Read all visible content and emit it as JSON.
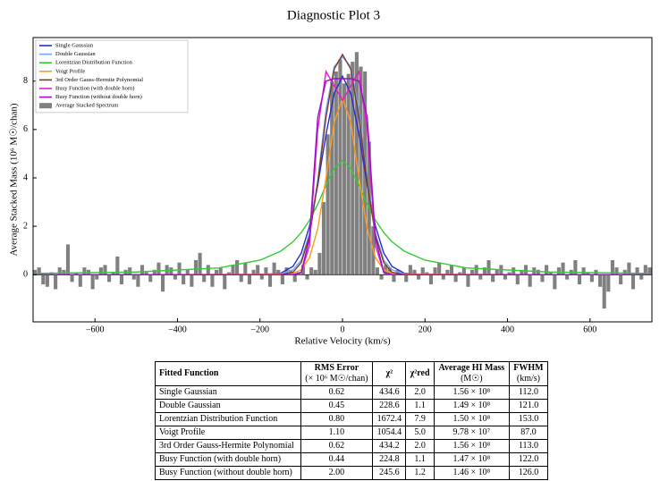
{
  "chart_data": {
    "type": "line",
    "title": "Diagnostic Plot 3",
    "x_label": "Relative Velocity (km/s)",
    "y_label": "Average Stacked Mass (10⁶ M☉/chan)",
    "xlim": [
      -750,
      750
    ],
    "ylim": [
      -1.95,
      9.8
    ],
    "xticks": [
      {
        "value": -600,
        "label": "−600"
      },
      {
        "value": -400,
        "label": "−400"
      },
      {
        "value": -200,
        "label": "−200"
      },
      0,
      200,
      400,
      600
    ],
    "yticks": [
      0,
      2,
      4,
      6,
      8
    ],
    "legend": "upper left",
    "x": [
      -750,
      -500,
      -300,
      -200,
      -150,
      -120,
      -100,
      -80,
      -60,
      -40,
      -20,
      0,
      20,
      40,
      60,
      80,
      100,
      120,
      150,
      200,
      300,
      500,
      750
    ],
    "series": [
      {
        "name": "Single Gaussian",
        "color": "#2a2ad0",
        "values": [
          0,
          0,
          0,
          0,
          0.06,
          0.34,
          0.89,
          2.0,
          3.7,
          5.8,
          7.5,
          8.2,
          7.5,
          5.8,
          3.7,
          2.0,
          0.89,
          0.34,
          0.06,
          0,
          0,
          0,
          0
        ]
      },
      {
        "name": "Double Gaussian",
        "color": "#6fa8e8",
        "values": [
          0,
          0,
          0,
          0,
          0.03,
          0.2,
          0.6,
          1.7,
          3.9,
          6.8,
          8.6,
          9.0,
          8.6,
          6.8,
          3.9,
          1.7,
          0.6,
          0.2,
          0.03,
          0,
          0,
          0,
          0
        ]
      },
      {
        "name": "Lorentzian Distribution Function",
        "color": "#33cc33",
        "values": [
          0.05,
          0.11,
          0.28,
          0.6,
          0.97,
          1.36,
          1.74,
          2.25,
          2.91,
          3.69,
          4.4,
          4.7,
          4.4,
          3.69,
          2.91,
          2.25,
          1.74,
          1.36,
          0.97,
          0.6,
          0.28,
          0.11,
          0.05
        ]
      },
      {
        "name": "Voigt Profile",
        "color": "#ff9a1a",
        "values": [
          0,
          0,
          0.01,
          0.02,
          0.04,
          0.06,
          0.2,
          0.7,
          1.9,
          4.0,
          6.3,
          7.3,
          6.3,
          4.0,
          1.9,
          0.7,
          0.2,
          0.06,
          0.04,
          0.02,
          0.01,
          0,
          0
        ]
      },
      {
        "name": "3rd Order Gauss-Hermite Polynomial",
        "color": "#7b3a2a",
        "values": [
          0,
          0,
          0,
          0,
          0,
          0.1,
          0.5,
          1.6,
          3.8,
          6.5,
          8.5,
          9.1,
          8.5,
          6.5,
          3.8,
          1.6,
          0.5,
          0.1,
          0,
          0,
          0,
          0,
          0
        ]
      },
      {
        "name": "Busy Function (with double horn)",
        "color": "#e020c0",
        "values": [
          0,
          0,
          0,
          0,
          0,
          0,
          0.1,
          1.2,
          6.0,
          8.4,
          7.8,
          7.2,
          7.8,
          8.4,
          6.0,
          1.2,
          0.1,
          0,
          0,
          0,
          0,
          0,
          0
        ]
      },
      {
        "name": "Busy Function (without double horn)",
        "color": "#9a10d0",
        "values": [
          0,
          0,
          0,
          0,
          0,
          0,
          0.1,
          1.5,
          6.5,
          8.0,
          8.1,
          8.1,
          8.1,
          8.0,
          6.5,
          1.5,
          0.1,
          0,
          0,
          0,
          0,
          0,
          0
        ]
      }
    ],
    "histogram": {
      "name": "Average Stacked Spectrum",
      "color": "#808080",
      "bins": [
        -750,
        -740,
        -730,
        -720,
        -710,
        -700,
        -690,
        -680,
        -670,
        -660,
        -650,
        -640,
        -630,
        -620,
        -610,
        -600,
        -590,
        -580,
        -570,
        -560,
        -550,
        -540,
        -530,
        -520,
        -510,
        -500,
        -490,
        -480,
        -470,
        -460,
        -450,
        -440,
        -430,
        -420,
        -410,
        -400,
        -390,
        -380,
        -370,
        -360,
        -350,
        -340,
        -330,
        -320,
        -310,
        -300,
        -290,
        -280,
        -270,
        -260,
        -250,
        -240,
        -230,
        -220,
        -210,
        -200,
        -190,
        -180,
        -170,
        -160,
        -150,
        -140,
        -130,
        -120,
        -110,
        -100,
        -90,
        -80,
        -70,
        -60,
        -50,
        -40,
        -30,
        -20,
        -10,
        0,
        10,
        20,
        30,
        40,
        50,
        60,
        70,
        80,
        90,
        100,
        110,
        120,
        130,
        140,
        150,
        160,
        170,
        180,
        190,
        200,
        210,
        220,
        230,
        240,
        250,
        260,
        270,
        280,
        290,
        300,
        310,
        320,
        330,
        340,
        350,
        360,
        370,
        380,
        390,
        400,
        410,
        420,
        430,
        440,
        450,
        460,
        470,
        480,
        490,
        500,
        510,
        520,
        530,
        540,
        550,
        560,
        570,
        580,
        590,
        600,
        610,
        620,
        630,
        640,
        650,
        660,
        670,
        680,
        690,
        700,
        710,
        720,
        730,
        740,
        750
      ],
      "counts": [
        0.2,
        0.3,
        -0.4,
        -0.5,
        0.1,
        -0.6,
        0.3,
        0.2,
        1.25,
        -0.3,
        0.1,
        -0.5,
        0.3,
        0.2,
        -0.6,
        -0.2,
        0.3,
        0.4,
        -0.3,
        0.1,
        0.75,
        -0.4,
        0.2,
        0.3,
        -0.2,
        -0.5,
        0.4,
        0.1,
        -0.3,
        0.2,
        0.5,
        -0.7,
        0.4,
        0.3,
        -0.2,
        0.5,
        -0.4,
        0.2,
        -0.5,
        0.6,
        0.9,
        -0.3,
        0.4,
        -0.5,
        0.2,
        0.3,
        -0.6,
        0.1,
        0.4,
        0.6,
        -0.3,
        0.5,
        -0.4,
        0.2,
        0.4,
        -0.2,
        0.3,
        -0.5,
        0.5,
        0.2,
        -0.4,
        0.3,
        0.2,
        -0.3,
        0.1,
        0.4,
        -0.2,
        0.3,
        0.2,
        0.9,
        3.0,
        5.8,
        8.0,
        8.4,
        8.9,
        7.9,
        8.3,
        8.8,
        9.2,
        8.6,
        8.4,
        5.5,
        2.0,
        0.3,
        -0.2,
        0.4,
        0.3,
        -0.3,
        0.2,
        0.1,
        -0.3,
        0.4,
        0.2,
        -0.2,
        0.3,
        0.1,
        -0.4,
        0.3,
        0.5,
        -0.2,
        0.2,
        0.4,
        -0.3,
        0.1,
        0.3,
        -0.5,
        0.2,
        0.4,
        -0.2,
        0.3,
        0.6,
        -0.3,
        0.2,
        0.4,
        -0.2,
        0.1,
        0.3,
        -0.4,
        0.2,
        0.4,
        -0.5,
        0.3,
        0.2,
        -0.3,
        0.4,
        0.1,
        -0.6,
        0.3,
        0.5,
        -0.2,
        0.2,
        0.6,
        -0.4,
        0.3,
        0.1,
        -0.3,
        0.2,
        -0.5,
        -1.4,
        -0.7,
        0.6,
        0.3,
        -0.4,
        0.2,
        0.5,
        -0.6,
        0.3,
        -0.2,
        0.4,
        0.3
      ]
    }
  },
  "table": {
    "header": [
      [
        "Fitted Function"
      ],
      [
        "RMS Error",
        "(× 10⁶ M☉/chan)"
      ],
      [
        "χ²"
      ],
      [
        "χ²red"
      ],
      [
        "Average HI Mass",
        "(M☉)"
      ],
      [
        "FWHM",
        "(km/s)"
      ]
    ],
    "rows": [
      [
        "Single Gaussian",
        "0.62",
        "434.6",
        "2.0",
        "1.56 × 10⁸",
        "112.0"
      ],
      [
        "Double Gaussian",
        "0.45",
        "228.6",
        "1.1",
        "1.49 × 10⁸",
        "121.0"
      ],
      [
        "Lorentzian Distribution Function",
        "0.80",
        "1672.4",
        "7.9",
        "1.50 × 10⁸",
        "153.0"
      ],
      [
        "Voigt Profile",
        "1.10",
        "1054.4",
        "5.0",
        "9.78 × 10⁷",
        "87.0"
      ],
      [
        "3rd Order Gauss-Hermite Polynomial",
        "0.62",
        "434.2",
        "2.0",
        "1.56 × 10⁸",
        "113.0"
      ],
      [
        "Busy Function (with double horn)",
        "0.44",
        "224.8",
        "1.1",
        "1.47 × 10⁸",
        "122.0"
      ],
      [
        "Busy Function (without double horn)",
        "2.00",
        "245.6",
        "1.2",
        "1.46 × 10⁸",
        "126.0"
      ]
    ]
  }
}
